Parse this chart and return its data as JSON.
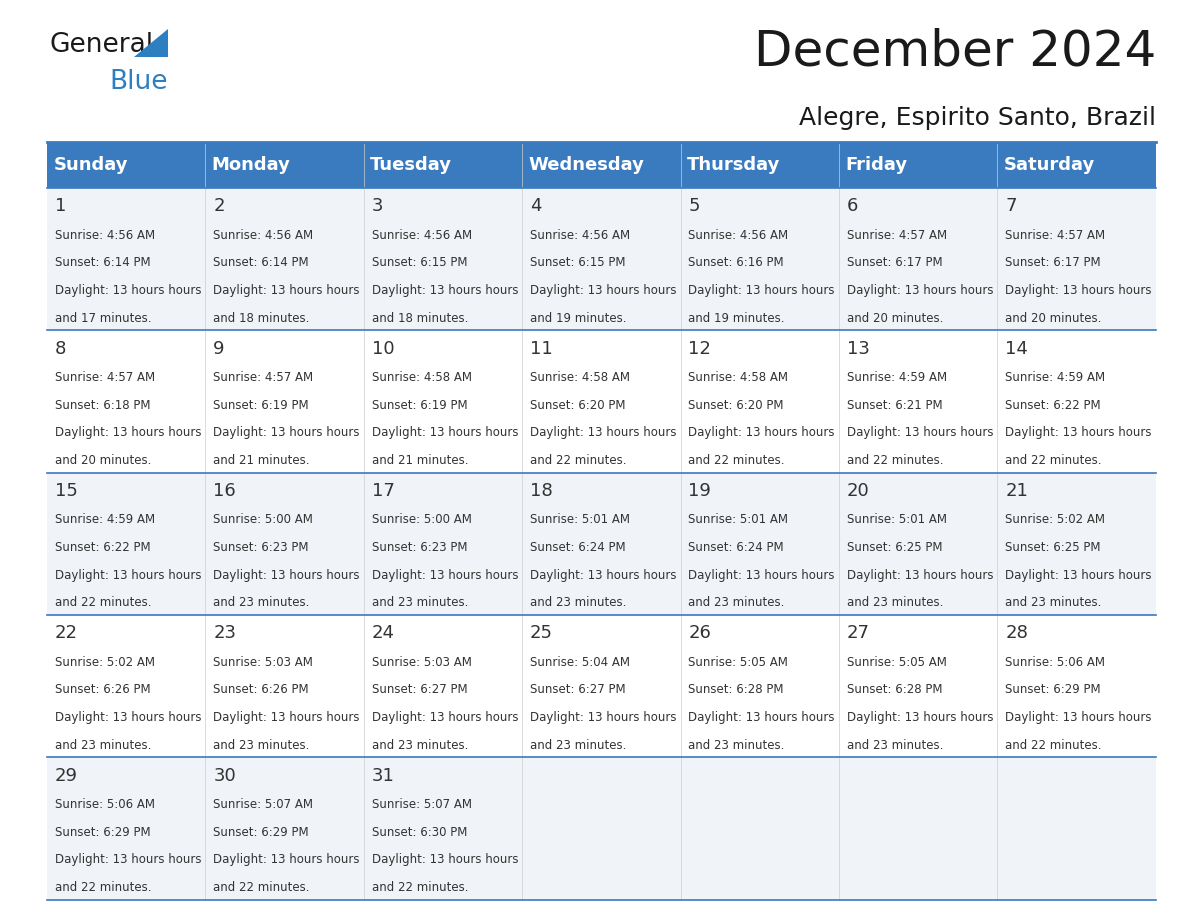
{
  "title": "December 2024",
  "subtitle": "Alegre, Espirito Santo, Brazil",
  "days_of_week": [
    "Sunday",
    "Monday",
    "Tuesday",
    "Wednesday",
    "Thursday",
    "Friday",
    "Saturday"
  ],
  "header_bg": "#3a7abf",
  "header_text": "#ffffff",
  "cell_bg_odd": "#f0f4f8",
  "cell_bg_even": "#ffffff",
  "row_line_color": "#3a7abf",
  "date_color": "#333333",
  "text_color": "#333333",
  "calendar": [
    [
      {
        "day": 1,
        "sunrise": "4:56 AM",
        "sunset": "6:14 PM",
        "daylight": "13 hours and 17 minutes."
      },
      {
        "day": 2,
        "sunrise": "4:56 AM",
        "sunset": "6:14 PM",
        "daylight": "13 hours and 18 minutes."
      },
      {
        "day": 3,
        "sunrise": "4:56 AM",
        "sunset": "6:15 PM",
        "daylight": "13 hours and 18 minutes."
      },
      {
        "day": 4,
        "sunrise": "4:56 AM",
        "sunset": "6:15 PM",
        "daylight": "13 hours and 19 minutes."
      },
      {
        "day": 5,
        "sunrise": "4:56 AM",
        "sunset": "6:16 PM",
        "daylight": "13 hours and 19 minutes."
      },
      {
        "day": 6,
        "sunrise": "4:57 AM",
        "sunset": "6:17 PM",
        "daylight": "13 hours and 20 minutes."
      },
      {
        "day": 7,
        "sunrise": "4:57 AM",
        "sunset": "6:17 PM",
        "daylight": "13 hours and 20 minutes."
      }
    ],
    [
      {
        "day": 8,
        "sunrise": "4:57 AM",
        "sunset": "6:18 PM",
        "daylight": "13 hours and 20 minutes."
      },
      {
        "day": 9,
        "sunrise": "4:57 AM",
        "sunset": "6:19 PM",
        "daylight": "13 hours and 21 minutes."
      },
      {
        "day": 10,
        "sunrise": "4:58 AM",
        "sunset": "6:19 PM",
        "daylight": "13 hours and 21 minutes."
      },
      {
        "day": 11,
        "sunrise": "4:58 AM",
        "sunset": "6:20 PM",
        "daylight": "13 hours and 22 minutes."
      },
      {
        "day": 12,
        "sunrise": "4:58 AM",
        "sunset": "6:20 PM",
        "daylight": "13 hours and 22 minutes."
      },
      {
        "day": 13,
        "sunrise": "4:59 AM",
        "sunset": "6:21 PM",
        "daylight": "13 hours and 22 minutes."
      },
      {
        "day": 14,
        "sunrise": "4:59 AM",
        "sunset": "6:22 PM",
        "daylight": "13 hours and 22 minutes."
      }
    ],
    [
      {
        "day": 15,
        "sunrise": "4:59 AM",
        "sunset": "6:22 PM",
        "daylight": "13 hours and 22 minutes."
      },
      {
        "day": 16,
        "sunrise": "5:00 AM",
        "sunset": "6:23 PM",
        "daylight": "13 hours and 23 minutes."
      },
      {
        "day": 17,
        "sunrise": "5:00 AM",
        "sunset": "6:23 PM",
        "daylight": "13 hours and 23 minutes."
      },
      {
        "day": 18,
        "sunrise": "5:01 AM",
        "sunset": "6:24 PM",
        "daylight": "13 hours and 23 minutes."
      },
      {
        "day": 19,
        "sunrise": "5:01 AM",
        "sunset": "6:24 PM",
        "daylight": "13 hours and 23 minutes."
      },
      {
        "day": 20,
        "sunrise": "5:01 AM",
        "sunset": "6:25 PM",
        "daylight": "13 hours and 23 minutes."
      },
      {
        "day": 21,
        "sunrise": "5:02 AM",
        "sunset": "6:25 PM",
        "daylight": "13 hours and 23 minutes."
      }
    ],
    [
      {
        "day": 22,
        "sunrise": "5:02 AM",
        "sunset": "6:26 PM",
        "daylight": "13 hours and 23 minutes."
      },
      {
        "day": 23,
        "sunrise": "5:03 AM",
        "sunset": "6:26 PM",
        "daylight": "13 hours and 23 minutes."
      },
      {
        "day": 24,
        "sunrise": "5:03 AM",
        "sunset": "6:27 PM",
        "daylight": "13 hours and 23 minutes."
      },
      {
        "day": 25,
        "sunrise": "5:04 AM",
        "sunset": "6:27 PM",
        "daylight": "13 hours and 23 minutes."
      },
      {
        "day": 26,
        "sunrise": "5:05 AM",
        "sunset": "6:28 PM",
        "daylight": "13 hours and 23 minutes."
      },
      {
        "day": 27,
        "sunrise": "5:05 AM",
        "sunset": "6:28 PM",
        "daylight": "13 hours and 23 minutes."
      },
      {
        "day": 28,
        "sunrise": "5:06 AM",
        "sunset": "6:29 PM",
        "daylight": "13 hours and 22 minutes."
      }
    ],
    [
      {
        "day": 29,
        "sunrise": "5:06 AM",
        "sunset": "6:29 PM",
        "daylight": "13 hours and 22 minutes."
      },
      {
        "day": 30,
        "sunrise": "5:07 AM",
        "sunset": "6:29 PM",
        "daylight": "13 hours and 22 minutes."
      },
      {
        "day": 31,
        "sunrise": "5:07 AM",
        "sunset": "6:30 PM",
        "daylight": "13 hours and 22 minutes."
      },
      null,
      null,
      null,
      null
    ]
  ]
}
